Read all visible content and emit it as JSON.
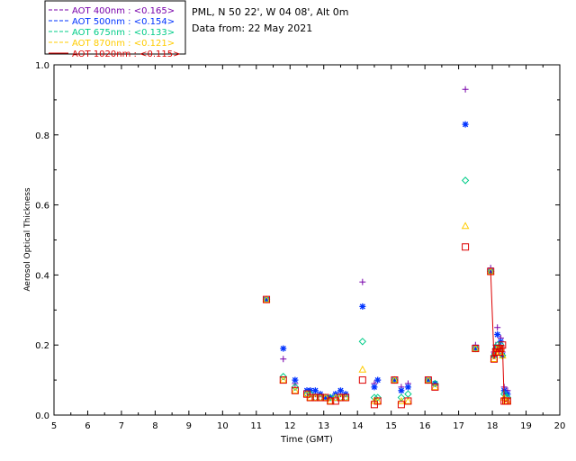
{
  "header": {
    "station": "PML, N 50 22', W 04 08', Alt 0m",
    "date": "Data from: 22 May 2021"
  },
  "colors": {
    "aot_400": "#7700aa",
    "aot_500": "#0033ff",
    "aot_675": "#00cc88",
    "aot_870": "#ffcc00",
    "aot_1020": "#dd0000"
  },
  "chart_data": {
    "type": "scatter",
    "xlabel": "Time (GMT)",
    "ylabel": "Aerosol Optical Thickness",
    "xlim": [
      5,
      20
    ],
    "ylim": [
      0,
      1.0
    ],
    "xticks": [
      5,
      6,
      7,
      8,
      9,
      10,
      11,
      12,
      13,
      14,
      15,
      16,
      17,
      18,
      19,
      20
    ],
    "xtick_labels": [
      "5",
      "6",
      "7",
      "8",
      "9",
      "10",
      "11",
      "12",
      "13",
      "14",
      "15",
      "16",
      "17",
      "18",
      "19",
      "20"
    ],
    "yticks": [
      0.0,
      0.2,
      0.4,
      0.6,
      0.8,
      1.0
    ],
    "ytick_labels": [
      "0.0",
      "0.2",
      "0.4",
      "0.6",
      "0.8",
      "1.0"
    ],
    "legend_position": "top-left",
    "series": [
      {
        "name": "AOT  400nm : <0.165>",
        "marker": "plus",
        "color_key": "aot_400",
        "connect": false,
        "x": [
          11.3,
          11.8,
          12.15,
          12.5,
          12.6,
          12.75,
          12.9,
          13.05,
          13.2,
          13.35,
          13.5,
          13.65,
          14.15,
          14.5,
          14.6,
          15.1,
          15.3,
          15.5,
          16.1,
          16.3,
          17.2,
          17.5,
          17.95,
          18.05,
          18.1,
          18.15,
          18.2,
          18.25,
          18.3,
          18.35,
          18.4,
          18.45
        ],
        "y": [
          0.33,
          0.16,
          0.09,
          0.07,
          0.07,
          0.06,
          0.06,
          0.05,
          0.05,
          0.06,
          0.06,
          0.06,
          0.38,
          0.09,
          0.1,
          0.1,
          0.08,
          0.09,
          0.1,
          0.09,
          0.93,
          0.2,
          0.42,
          0.18,
          0.2,
          0.25,
          0.2,
          0.22,
          0.18,
          0.08,
          0.07,
          0.07
        ]
      },
      {
        "name": "AOT  500nm : <0.154>",
        "marker": "asterisk",
        "color_key": "aot_500",
        "connect": false,
        "x": [
          11.3,
          11.8,
          12.15,
          12.5,
          12.6,
          12.75,
          12.9,
          13.05,
          13.2,
          13.35,
          13.5,
          13.65,
          14.15,
          14.5,
          14.6,
          15.1,
          15.3,
          15.5,
          16.1,
          16.3,
          17.2,
          17.5,
          17.95,
          18.05,
          18.1,
          18.15,
          18.2,
          18.25,
          18.3,
          18.35,
          18.4,
          18.45
        ],
        "y": [
          0.33,
          0.19,
          0.1,
          0.07,
          0.07,
          0.07,
          0.06,
          0.05,
          0.05,
          0.06,
          0.07,
          0.06,
          0.31,
          0.08,
          0.1,
          0.1,
          0.07,
          0.08,
          0.1,
          0.09,
          0.83,
          0.19,
          0.41,
          0.17,
          0.19,
          0.23,
          0.19,
          0.21,
          0.17,
          0.07,
          0.06,
          0.06
        ]
      },
      {
        "name": "AOT  675nm : <0.133>",
        "marker": "diamond",
        "color_key": "aot_675",
        "connect": false,
        "x": [
          11.3,
          11.8,
          12.15,
          12.5,
          12.6,
          12.75,
          12.9,
          13.05,
          13.2,
          13.35,
          13.5,
          13.65,
          14.15,
          14.5,
          14.6,
          15.1,
          15.3,
          15.5,
          16.1,
          16.3,
          17.2,
          17.5,
          17.95,
          18.05,
          18.1,
          18.15,
          18.2,
          18.25,
          18.3,
          18.35,
          18.4,
          18.45
        ],
        "y": [
          0.33,
          0.11,
          0.08,
          0.06,
          0.06,
          0.05,
          0.05,
          0.05,
          0.05,
          0.05,
          0.05,
          0.05,
          0.21,
          0.05,
          0.05,
          0.1,
          0.05,
          0.06,
          0.1,
          0.09,
          0.67,
          0.19,
          0.41,
          0.17,
          0.19,
          0.2,
          0.19,
          0.2,
          0.17,
          0.06,
          0.05,
          0.05
        ]
      },
      {
        "name": "AOT  870nm : <0.121>",
        "marker": "triangle",
        "color_key": "aot_870",
        "connect": false,
        "x": [
          11.3,
          11.8,
          12.15,
          12.5,
          12.6,
          12.75,
          12.9,
          13.05,
          13.2,
          13.35,
          13.5,
          13.65,
          14.15,
          14.5,
          14.6,
          15.1,
          15.3,
          15.5,
          16.1,
          16.3,
          17.2,
          17.5,
          17.95,
          18.05,
          18.1,
          18.15,
          18.2,
          18.25,
          18.3,
          18.35,
          18.4,
          18.45
        ],
        "y": [
          0.33,
          0.1,
          0.07,
          0.06,
          0.05,
          0.05,
          0.05,
          0.05,
          0.04,
          0.05,
          0.05,
          0.05,
          0.13,
          0.04,
          0.04,
          0.1,
          0.04,
          0.04,
          0.1,
          0.08,
          0.54,
          0.19,
          0.41,
          0.16,
          0.18,
          0.19,
          0.18,
          0.19,
          0.17,
          0.05,
          0.04,
          0.04
        ]
      },
      {
        "name": "AOT 1020nm : <0.115>",
        "marker": "square",
        "color_key": "aot_1020",
        "connect": true,
        "x": [
          11.3,
          11.8,
          12.15,
          12.5,
          12.6,
          12.75,
          12.9,
          13.05,
          13.2,
          13.35,
          13.5,
          13.65,
          14.15,
          14.5,
          14.6,
          15.1,
          15.3,
          15.5,
          16.1,
          16.3,
          17.2,
          17.5,
          17.95,
          18.05,
          18.1,
          18.15,
          18.2,
          18.25,
          18.3,
          18.35,
          18.4,
          18.45
        ],
        "y": [
          0.33,
          0.1,
          0.07,
          0.06,
          0.05,
          0.05,
          0.05,
          0.05,
          0.04,
          0.04,
          0.05,
          0.05,
          0.1,
          0.03,
          0.04,
          0.1,
          0.03,
          0.04,
          0.1,
          0.08,
          0.48,
          0.19,
          0.41,
          0.16,
          0.18,
          0.19,
          0.18,
          0.19,
          0.2,
          0.04,
          0.04,
          0.04
        ]
      }
    ]
  }
}
